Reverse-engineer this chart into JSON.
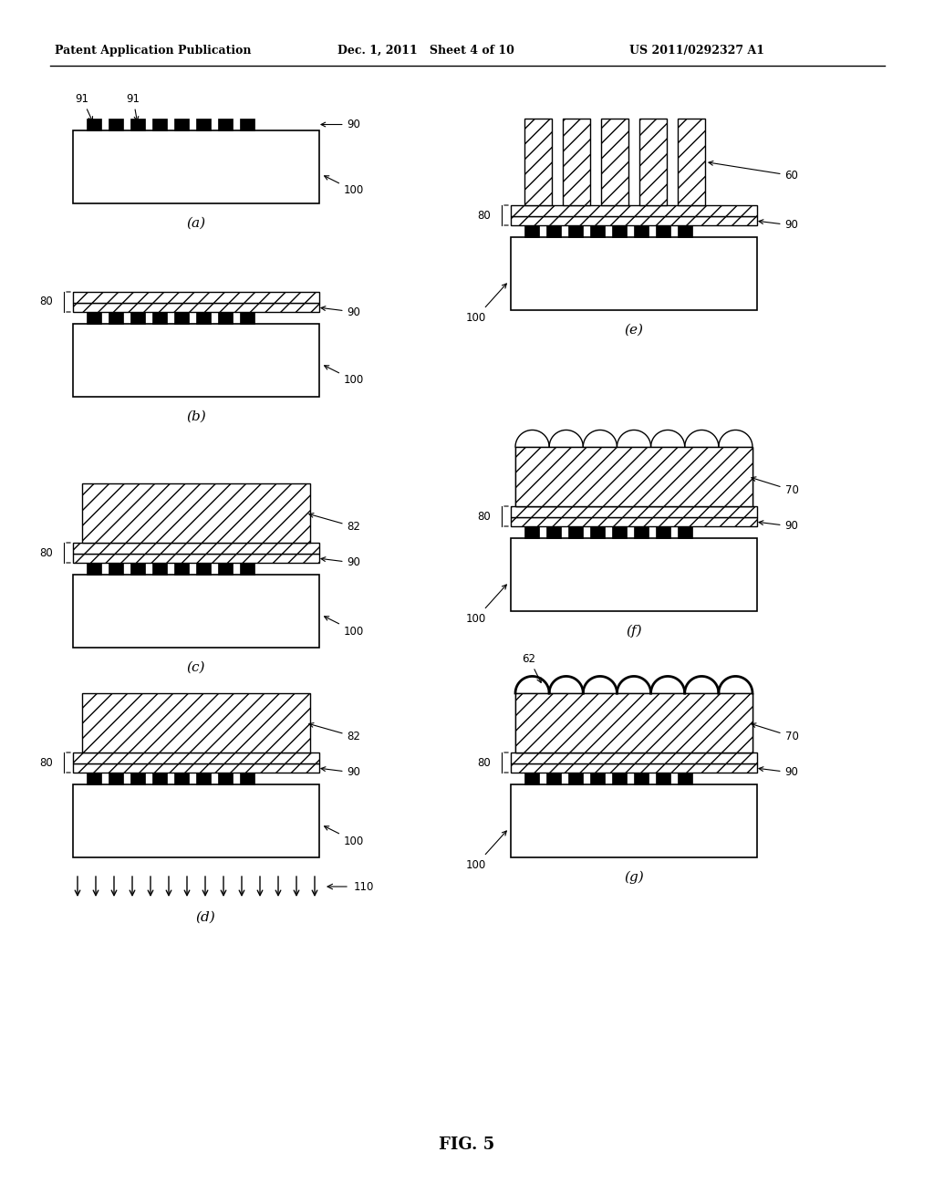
{
  "header_left": "Patent Application Publication",
  "header_mid": "Dec. 1, 2011   Sheet 4 of 10",
  "header_right": "US 2011/0292327 A1",
  "figure_label": "FIG. 5",
  "bg_color": "#ffffff"
}
